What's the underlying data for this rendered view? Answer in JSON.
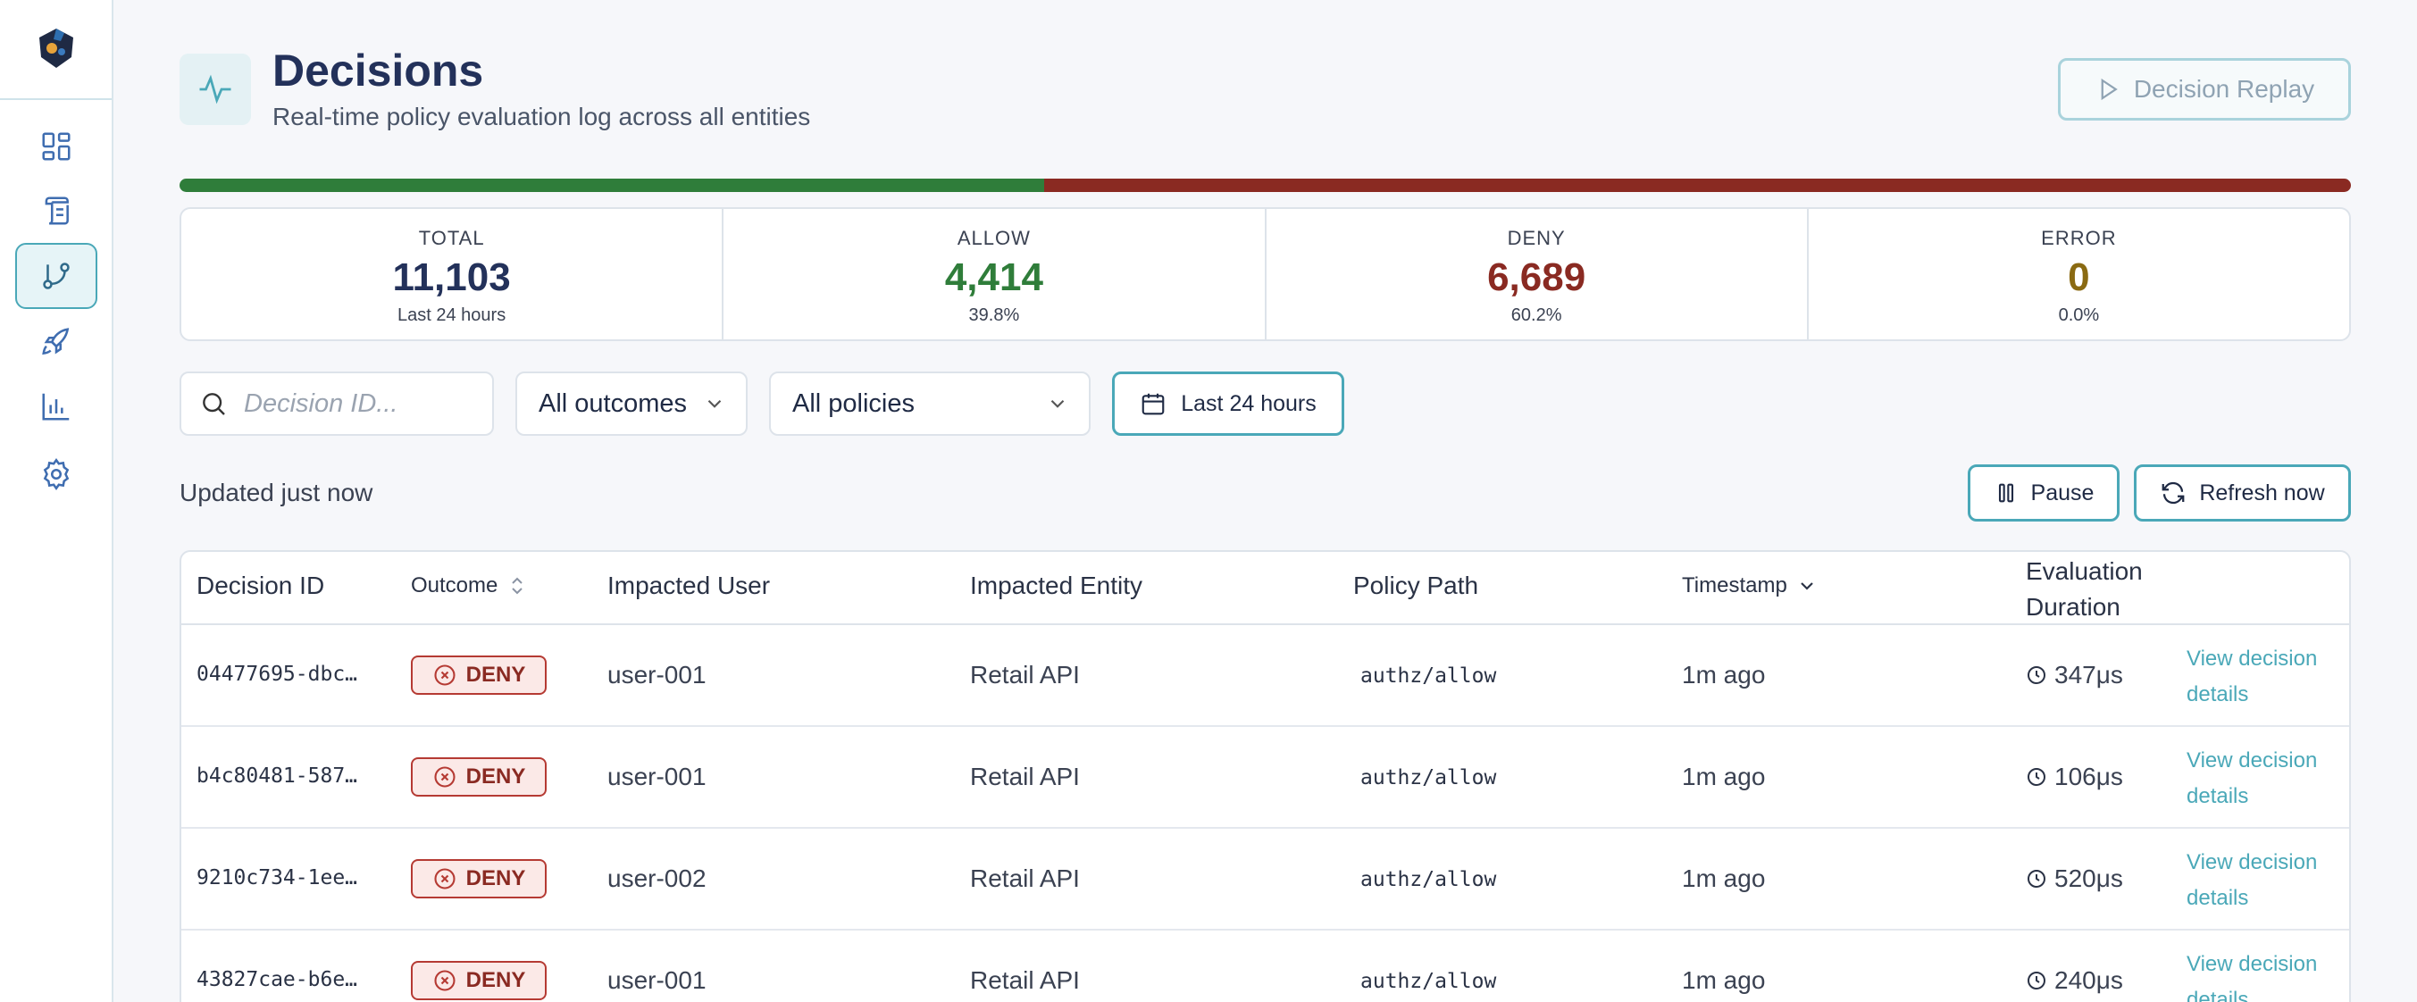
{
  "header": {
    "title": "Decisions",
    "subtitle": "Real-time policy evaluation log across all entities",
    "replay_label": "Decision Replay"
  },
  "ratio": {
    "allow_fraction": 0.398,
    "deny_fraction": 0.602
  },
  "stats": [
    {
      "label": "TOTAL",
      "value": "11,103",
      "sub": "Last 24 hours",
      "color": "#23315a"
    },
    {
      "label": "ALLOW",
      "value": "4,414",
      "sub": "39.8%",
      "color": "#2f7d3a"
    },
    {
      "label": "DENY",
      "value": "6,689",
      "sub": "60.2%",
      "color": "#8a2a22"
    },
    {
      "label": "ERROR",
      "value": "0",
      "sub": "0.0%",
      "color": "#8a6a12"
    }
  ],
  "filters": {
    "search_placeholder": "Decision ID...",
    "outcome_selected": "All outcomes",
    "policy_selected": "All policies",
    "date_range_label": "Last 24 hours"
  },
  "status": {
    "updated_text": "Updated just now",
    "pause_label": "Pause",
    "refresh_label": "Refresh now"
  },
  "table": {
    "columns": {
      "decision_id": "Decision ID",
      "outcome": "Outcome",
      "impacted_user": "Impacted User",
      "impacted_entity": "Impacted Entity",
      "policy_path": "Policy Path",
      "timestamp": "Timestamp",
      "duration_line1": "Evaluation",
      "duration_line2": "Duration"
    },
    "rows": [
      {
        "id": "04477695-dbc…",
        "outcome": "DENY",
        "user": "user-001",
        "entity": "Retail API",
        "policy": "authz/allow",
        "time": "1m ago",
        "duration": "347μs",
        "link": "View decision details"
      },
      {
        "id": "b4c80481-587…",
        "outcome": "DENY",
        "user": "user-001",
        "entity": "Retail API",
        "policy": "authz/allow",
        "time": "1m ago",
        "duration": "106μs",
        "link": "View decision details"
      },
      {
        "id": "9210c734-1ee…",
        "outcome": "DENY",
        "user": "user-002",
        "entity": "Retail API",
        "policy": "authz/allow",
        "time": "1m ago",
        "duration": "520μs",
        "link": "View decision details"
      },
      {
        "id": "43827cae-b6e…",
        "outcome": "DENY",
        "user": "user-001",
        "entity": "Retail API",
        "policy": "authz/allow",
        "time": "1m ago",
        "duration": "240μs",
        "link": "View decision details"
      }
    ]
  }
}
